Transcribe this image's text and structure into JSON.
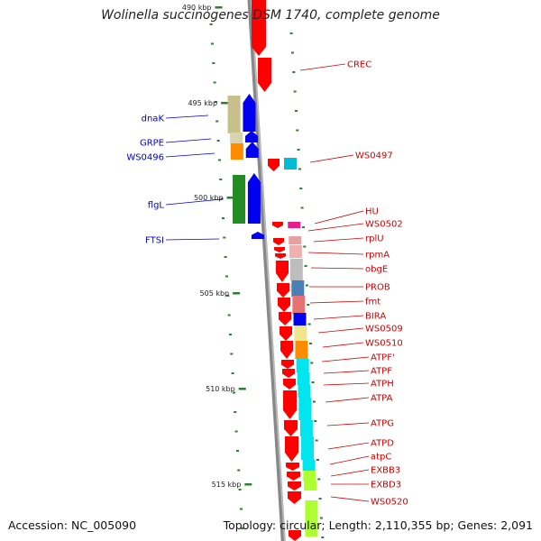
{
  "title": "Wolinella succinogenes DSM 1740, complete genome",
  "footer": {
    "accession": "Accession: NC_005090",
    "topology": "Topology: circular; Length: 2,110,355 bp; Genes: 2,091"
  },
  "colors": {
    "left_label": "#0000cc",
    "right_label": "#cc0000",
    "tick": "#2e7d32",
    "backbone": "#888888"
  },
  "kbp_ticks": [
    {
      "label": "490 kbp",
      "kbp": 490
    },
    {
      "label": "495 kbp",
      "kbp": 495
    },
    {
      "label": "500 kbp",
      "kbp": 500
    },
    {
      "label": "505 kbp",
      "kbp": 505
    },
    {
      "label": "510 kbp",
      "kbp": 510
    },
    {
      "label": "515 kbp",
      "kbp": 515
    }
  ],
  "left_genes": [
    {
      "label": "dnaK",
      "color": "#c8c08a",
      "strand": "blue"
    },
    {
      "label": "GRPE",
      "color": "#d9d4b0",
      "strand": "blue"
    },
    {
      "label": "WS0496",
      "color": "#ff8c00",
      "strand": "blue"
    },
    {
      "label": "flgL",
      "color": "#228b22",
      "strand": "blue"
    },
    {
      "label": "FTSI",
      "color": "#ffffff",
      "strand": "blue"
    }
  ],
  "right_genes": [
    {
      "label": "CREC",
      "color": "#ff0000"
    },
    {
      "label": "WS0497",
      "color": "#00bcd4"
    },
    {
      "label": "HU",
      "color": "#e91e8c"
    },
    {
      "label": "WS0502",
      "color": "#ffffff"
    },
    {
      "label": "rplU",
      "color": "#e6a0a0"
    },
    {
      "label": "rpmA",
      "color": "#f0b0b0"
    },
    {
      "label": "obgE",
      "color": "#bdbdbd"
    },
    {
      "label": "PROB",
      "color": "#4a7fb5"
    },
    {
      "label": "fmt",
      "color": "#e57373"
    },
    {
      "label": "BIRA",
      "color": "#0000ee"
    },
    {
      "label": "WS0509",
      "color": "#f0e68c"
    },
    {
      "label": "WS0510",
      "color": "#ff8c00"
    },
    {
      "label": "ATPF'",
      "color": "#00e5ee"
    },
    {
      "label": "ATPF",
      "color": "#00e5ee"
    },
    {
      "label": "ATPH",
      "color": "#00e5ee"
    },
    {
      "label": "ATPA",
      "color": "#00e5ee"
    },
    {
      "label": "ATPG",
      "color": "#00e5ee"
    },
    {
      "label": "ATPD",
      "color": "#00e5ee"
    },
    {
      "label": "atpC",
      "color": "#00e5ee"
    },
    {
      "label": "EXBB3",
      "color": "#adff2f"
    },
    {
      "label": "EXBD3",
      "color": "#adff2f"
    },
    {
      "label": "WS0520",
      "color": "#adff2f"
    }
  ]
}
